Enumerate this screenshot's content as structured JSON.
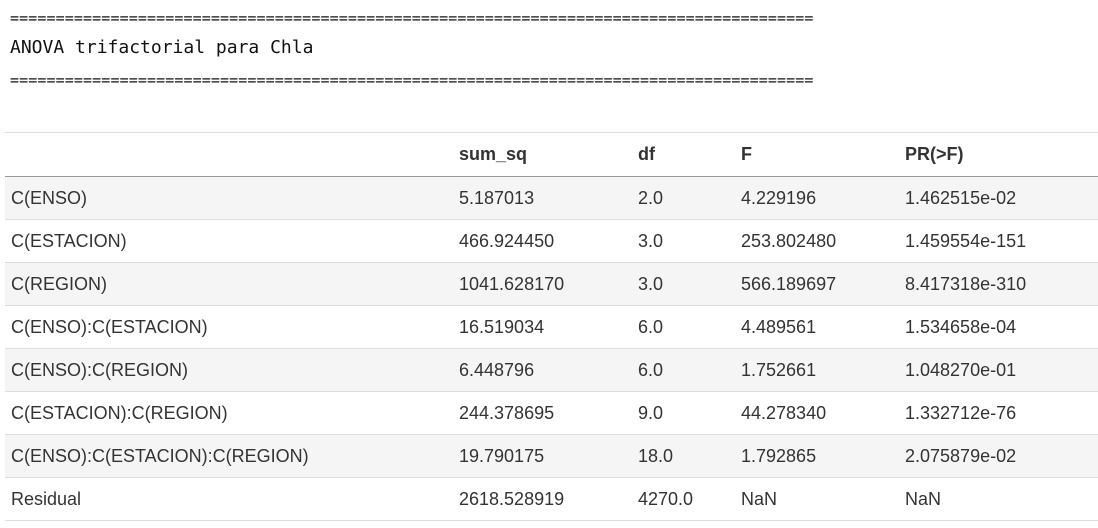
{
  "report": {
    "separator": "========================================================================================",
    "title": "ANOVA trifactorial para Chla"
  },
  "table": {
    "columns": [
      "",
      "sum_sq",
      "df",
      "F",
      "PR(>F)"
    ],
    "rows": [
      [
        "C(ENSO)",
        "5.187013",
        "2.0",
        "4.229196",
        "1.462515e-02"
      ],
      [
        "C(ESTACION)",
        "466.924450",
        "3.0",
        "253.802480",
        "1.459554e-151"
      ],
      [
        "C(REGION)",
        "1041.628170",
        "3.0",
        "566.189697",
        "8.417318e-310"
      ],
      [
        "C(ENSO):C(ESTACION)",
        "16.519034",
        "6.0",
        "4.489561",
        "1.534658e-04"
      ],
      [
        "C(ENSO):C(REGION)",
        "6.448796",
        "6.0",
        "1.752661",
        "1.048270e-01"
      ],
      [
        "C(ESTACION):C(REGION)",
        "244.378695",
        "9.0",
        "44.278340",
        "1.332712e-76"
      ],
      [
        "C(ENSO):C(ESTACION):C(REGION)",
        "19.790175",
        "18.0",
        "1.792865",
        "2.075879e-02"
      ],
      [
        "Residual",
        "2618.528919",
        "4270.0",
        "NaN",
        "NaN"
      ]
    ]
  }
}
